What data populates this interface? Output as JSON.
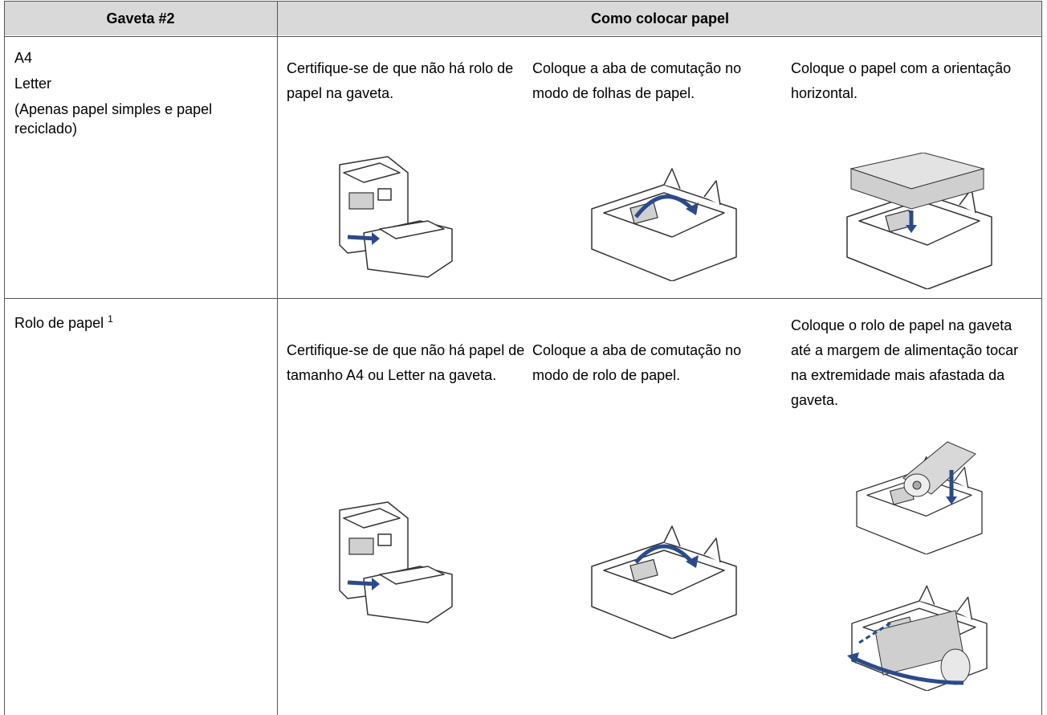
{
  "table": {
    "headers": [
      "Gaveta #2",
      "Como colocar papel"
    ],
    "rows": [
      {
        "paper": [
          "A4",
          "Letter",
          "(Apenas papel simples e papel reciclado)"
        ],
        "steps": [
          "Certifique-se de que não há rolo de papel na gaveta.",
          "Coloque a aba de comutação no modo de folhas de papel.",
          "Coloque o papel com a orientação horizontal."
        ]
      },
      {
        "paper": [
          "Rolo de papel"
        ],
        "footnote": "1",
        "steps": [
          "Certifique-se de que não há papel de tamanho A4 ou Letter na gaveta.",
          "Coloque a aba de comutação no modo de rolo de papel.",
          "Coloque o rolo de papel na gaveta até a margem de alimentação tocar na extremidade mais afastada da gaveta."
        ]
      }
    ]
  }
}
